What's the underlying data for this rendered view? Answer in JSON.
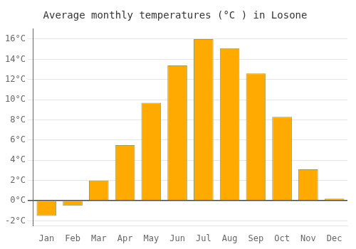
{
  "chart_data": {
    "type": "bar",
    "title": "Average monthly temperatures (°C ) in Losone",
    "categories": [
      "Jan",
      "Feb",
      "Mar",
      "Apr",
      "May",
      "Jun",
      "Jul",
      "Aug",
      "Sep",
      "Oct",
      "Nov",
      "Dec"
    ],
    "values": [
      -1.5,
      -0.5,
      2.0,
      5.5,
      9.7,
      13.4,
      16.0,
      15.1,
      12.6,
      8.3,
      3.1,
      0.2
    ],
    "color": "#FFAA00",
    "ylim": [
      -2.5,
      17.0
    ],
    "yticks": [
      {
        "value": -2,
        "label": "-2°C"
      },
      {
        "value": 0,
        "label": "0°C"
      },
      {
        "value": 2,
        "label": "2°C"
      },
      {
        "value": 4,
        "label": "4°C"
      },
      {
        "value": 6,
        "label": "6°C"
      },
      {
        "value": 8,
        "label": "8°C"
      },
      {
        "value": 10,
        "label": "10°C"
      },
      {
        "value": 12,
        "label": "12°C"
      },
      {
        "value": 14,
        "label": "14°C"
      },
      {
        "value": 16,
        "label": "16°C"
      }
    ],
    "grid": true
  }
}
